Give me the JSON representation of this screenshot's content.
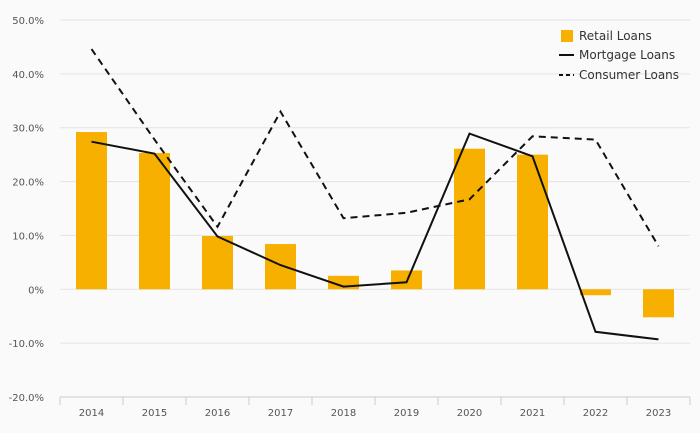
{
  "chart_data": {
    "type": "bar+line",
    "categories": [
      "2014",
      "2015",
      "2016",
      "2017",
      "2018",
      "2019",
      "2020",
      "2021",
      "2022",
      "2023"
    ],
    "series": [
      {
        "name": "Retail Loans",
        "kind": "bar",
        "color": "#f7b000",
        "values": [
          29.2,
          25.3,
          9.9,
          8.4,
          2.5,
          3.5,
          26.1,
          25.0,
          -1.1,
          -5.2
        ]
      },
      {
        "name": "Mortgage Loans",
        "kind": "line",
        "style": "solid",
        "color": "#111111",
        "values": [
          27.4,
          25.2,
          9.8,
          4.5,
          0.5,
          1.3,
          28.9,
          24.7,
          -7.9,
          -9.3
        ]
      },
      {
        "name": "Consumer Loans",
        "kind": "dashed-line",
        "style": "dashed",
        "color": "#111111",
        "values": [
          44.6,
          27.8,
          11.6,
          33.0,
          13.2,
          14.2,
          16.7,
          28.4,
          27.8,
          8.0
        ]
      }
    ],
    "y_ticks": [
      "50.0%",
      "40.0%",
      "30.0%",
      "20.0%",
      "10.0%",
      "0%",
      "-10.0%",
      "-20.0%"
    ],
    "ylim": [
      -20,
      50
    ],
    "grid": true,
    "legend_position": "top-right"
  }
}
